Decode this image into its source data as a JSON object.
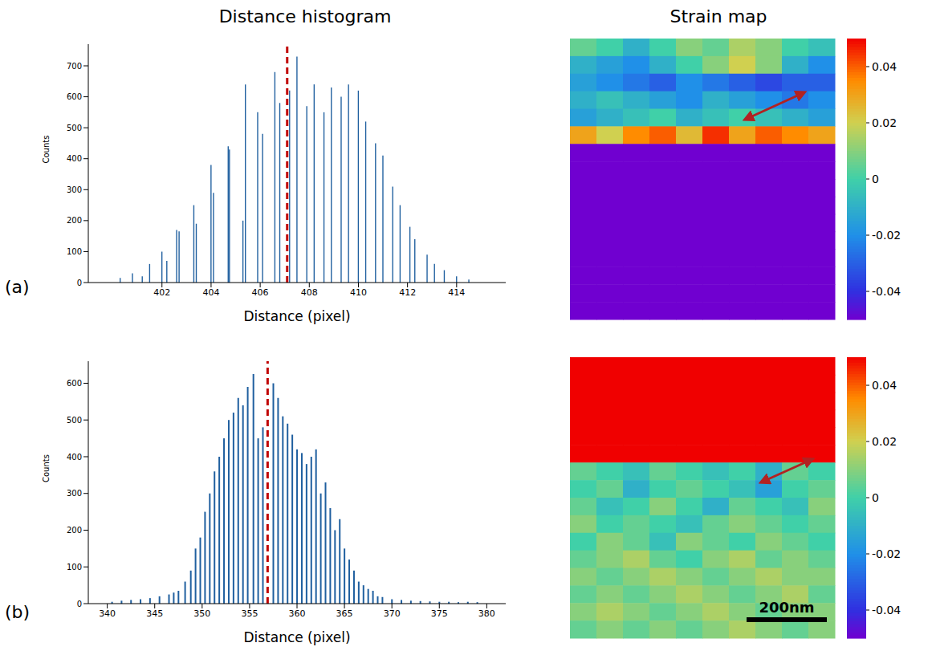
{
  "column_titles": [
    "Distance histogram",
    "Strain map"
  ],
  "chart_data": [
    {
      "type": "bar",
      "panel_label": "(a)",
      "x_label": "Distance (pixel)",
      "y_label": "Counts",
      "color": "#1f5f9f",
      "grid": false,
      "xlim": [
        399,
        416
      ],
      "xticks": [
        402,
        404,
        406,
        408,
        410,
        412,
        414
      ],
      "ylim": [
        0,
        770
      ],
      "yticks": [
        0,
        100,
        200,
        300,
        400,
        500,
        600,
        700
      ],
      "marker_x": 407.1,
      "x": [
        400.3,
        400.8,
        401.2,
        401.5,
        402.0,
        402.2,
        402.6,
        402.7,
        403.3,
        403.4,
        404.0,
        404.1,
        404.7,
        404.75,
        405.3,
        405.4,
        405.9,
        406.1,
        406.6,
        406.8,
        407.2,
        407.5,
        407.9,
        408.2,
        408.6,
        408.9,
        409.3,
        409.6,
        410.0,
        410.3,
        410.7,
        411.0,
        411.4,
        411.7,
        412.1,
        412.3,
        412.8,
        413.1,
        413.5,
        414.0,
        414.5
      ],
      "values": [
        15,
        30,
        20,
        60,
        100,
        70,
        170,
        165,
        250,
        190,
        380,
        290,
        440,
        430,
        200,
        640,
        550,
        480,
        680,
        580,
        620,
        730,
        570,
        640,
        550,
        630,
        600,
        640,
        620,
        520,
        450,
        410,
        310,
        250,
        180,
        140,
        90,
        60,
        40,
        20,
        10
      ]
    },
    {
      "type": "heatmap",
      "panel_label": "(a)",
      "tick_labels": false,
      "colorbar": {
        "range": [
          -0.05,
          0.05
        ],
        "ticks": [
          0.04,
          0.02,
          0,
          -0.02,
          -0.04
        ]
      },
      "cells": [
        [
          0.005,
          0.0,
          -0.01,
          0.0,
          0.01,
          0.005,
          0.015,
          0.01,
          0.0,
          -0.005
        ],
        [
          -0.01,
          -0.015,
          -0.02,
          -0.01,
          0.0,
          0.01,
          0.02,
          0.01,
          -0.01,
          -0.02
        ],
        [
          -0.015,
          -0.02,
          -0.025,
          -0.03,
          -0.02,
          -0.025,
          -0.03,
          -0.035,
          -0.03,
          -0.03
        ],
        [
          -0.01,
          -0.005,
          -0.01,
          -0.015,
          -0.02,
          -0.01,
          -0.015,
          -0.02,
          -0.025,
          -0.02
        ],
        [
          -0.015,
          -0.01,
          -0.005,
          0.0,
          -0.01,
          -0.005,
          0.0,
          -0.005,
          -0.01,
          -0.015
        ],
        [
          0.03,
          0.02,
          0.035,
          0.04,
          0.025,
          0.045,
          0.03,
          0.04,
          0.035,
          0.03
        ],
        [
          -0.05,
          -0.05,
          -0.05,
          -0.05,
          -0.05,
          -0.05,
          -0.05,
          -0.05,
          -0.05,
          -0.05
        ],
        [
          -0.05,
          -0.05,
          -0.05,
          -0.05,
          -0.05,
          -0.05,
          -0.05,
          -0.05,
          -0.05,
          -0.05
        ],
        [
          -0.05,
          -0.05,
          -0.05,
          -0.05,
          -0.05,
          -0.05,
          -0.05,
          -0.05,
          -0.05,
          -0.05
        ],
        [
          -0.05,
          -0.05,
          -0.05,
          -0.05,
          -0.05,
          -0.05,
          -0.05,
          -0.05,
          -0.05,
          -0.05
        ],
        [
          -0.05,
          -0.05,
          -0.05,
          -0.05,
          -0.05,
          -0.05,
          -0.05,
          -0.05,
          -0.05,
          -0.05
        ],
        [
          -0.05,
          -0.05,
          -0.05,
          -0.05,
          -0.05,
          -0.05,
          -0.05,
          -0.05,
          -0.05,
          -0.05
        ],
        [
          -0.05,
          -0.05,
          -0.05,
          -0.05,
          -0.05,
          -0.05,
          -0.05,
          -0.05,
          -0.05,
          -0.05
        ],
        [
          -0.05,
          -0.05,
          -0.05,
          -0.05,
          -0.05,
          -0.05,
          -0.05,
          -0.05,
          -0.05,
          -0.05
        ],
        [
          -0.05,
          -0.05,
          -0.05,
          -0.05,
          -0.05,
          -0.05,
          -0.05,
          -0.05,
          -0.05,
          -0.05
        ],
        [
          -0.05,
          -0.05,
          -0.05,
          -0.05,
          -0.05,
          -0.05,
          -0.05,
          -0.05,
          -0.05,
          -0.05
        ]
      ]
    },
    {
      "type": "bar",
      "panel_label": "(b)",
      "x_label": "Distance (pixel)",
      "y_label": "Counts",
      "color": "#1f5f9f",
      "grid": false,
      "xlim": [
        338,
        382
      ],
      "xticks": [
        340,
        345,
        350,
        355,
        360,
        365,
        370,
        375,
        380
      ],
      "ylim": [
        0,
        660
      ],
      "yticks": [
        0,
        100,
        200,
        300,
        400,
        500,
        600
      ],
      "marker_x": 356.9,
      "x": [
        340.5,
        341.5,
        342.5,
        343.5,
        344.5,
        345.5,
        346.5,
        347.0,
        347.5,
        348.2,
        348.8,
        349.3,
        349.8,
        350.3,
        350.8,
        351.3,
        351.8,
        352.3,
        352.8,
        353.3,
        353.8,
        354.3,
        354.8,
        355.4,
        355.9,
        356.4,
        357.5,
        358.0,
        358.5,
        359.0,
        359.5,
        360.0,
        360.5,
        361.0,
        361.5,
        362.0,
        362.5,
        363.0,
        363.5,
        364.0,
        364.5,
        365.0,
        365.5,
        366.0,
        366.5,
        367.0,
        367.5,
        368.0,
        368.5,
        369.0,
        370,
        371,
        372,
        373,
        374,
        375,
        376,
        377,
        378,
        379
      ],
      "values": [
        5,
        8,
        10,
        12,
        15,
        20,
        25,
        30,
        35,
        60,
        90,
        150,
        180,
        250,
        300,
        360,
        400,
        450,
        500,
        520,
        560,
        540,
        590,
        625,
        450,
        480,
        600,
        560,
        510,
        490,
        460,
        420,
        410,
        380,
        400,
        420,
        300,
        330,
        260,
        200,
        230,
        150,
        120,
        90,
        60,
        50,
        40,
        35,
        20,
        18,
        12,
        10,
        8,
        7,
        6,
        5,
        5,
        4,
        5,
        4
      ]
    },
    {
      "type": "heatmap",
      "panel_label": "(b)",
      "tick_labels": false,
      "scale_bar": "200nm",
      "colorbar": {
        "range": [
          -0.05,
          0.05
        ],
        "ticks": [
          0.04,
          0.02,
          0,
          -0.02,
          -0.04
        ]
      },
      "cells": [
        [
          0.05,
          0.05,
          0.05,
          0.05,
          0.05,
          0.05,
          0.05,
          0.05,
          0.05,
          0.05
        ],
        [
          0.05,
          0.05,
          0.05,
          0.05,
          0.05,
          0.05,
          0.05,
          0.05,
          0.05,
          0.05
        ],
        [
          0.05,
          0.05,
          0.05,
          0.05,
          0.05,
          0.05,
          0.05,
          0.05,
          0.05,
          0.05
        ],
        [
          0.05,
          0.05,
          0.05,
          0.05,
          0.05,
          0.05,
          0.05,
          0.05,
          0.05,
          0.05
        ],
        [
          0.05,
          0.05,
          0.05,
          0.05,
          0.05,
          0.05,
          0.05,
          0.05,
          0.05,
          0.05
        ],
        [
          0.05,
          0.05,
          0.05,
          0.05,
          0.05,
          0.05,
          0.05,
          0.05,
          0.05,
          0.05
        ],
        [
          0.005,
          0.0,
          -0.005,
          0.005,
          0.0,
          -0.005,
          0.0,
          -0.01,
          0.005,
          0.0
        ],
        [
          0.0,
          0.005,
          -0.01,
          0.0,
          0.005,
          0.0,
          -0.005,
          -0.015,
          0.0,
          0.005
        ],
        [
          0.005,
          -0.005,
          0.0,
          0.01,
          0.0,
          -0.01,
          0.005,
          0.0,
          -0.005,
          0.01
        ],
        [
          0.01,
          0.0,
          0.005,
          0.0,
          -0.005,
          0.005,
          0.01,
          0.005,
          0.0,
          0.005
        ],
        [
          0.0,
          0.01,
          0.005,
          -0.005,
          0.01,
          0.005,
          0.0,
          0.01,
          0.005,
          0.0
        ],
        [
          0.005,
          0.01,
          0.015,
          0.005,
          0.0,
          0.01,
          0.015,
          0.005,
          0.01,
          0.005
        ],
        [
          0.01,
          0.005,
          0.01,
          0.015,
          0.01,
          0.005,
          0.01,
          0.015,
          0.01,
          0.01
        ],
        [
          0.005,
          0.01,
          0.005,
          0.01,
          0.015,
          0.01,
          0.005,
          0.01,
          0.015,
          0.005
        ],
        [
          0.01,
          0.015,
          0.01,
          0.005,
          0.01,
          0.015,
          0.01,
          0.005,
          0.01,
          0.01
        ],
        [
          0.005,
          0.01,
          0.005,
          0.01,
          0.005,
          0.01,
          0.015,
          0.01,
          0.005,
          0.01
        ]
      ]
    }
  ]
}
